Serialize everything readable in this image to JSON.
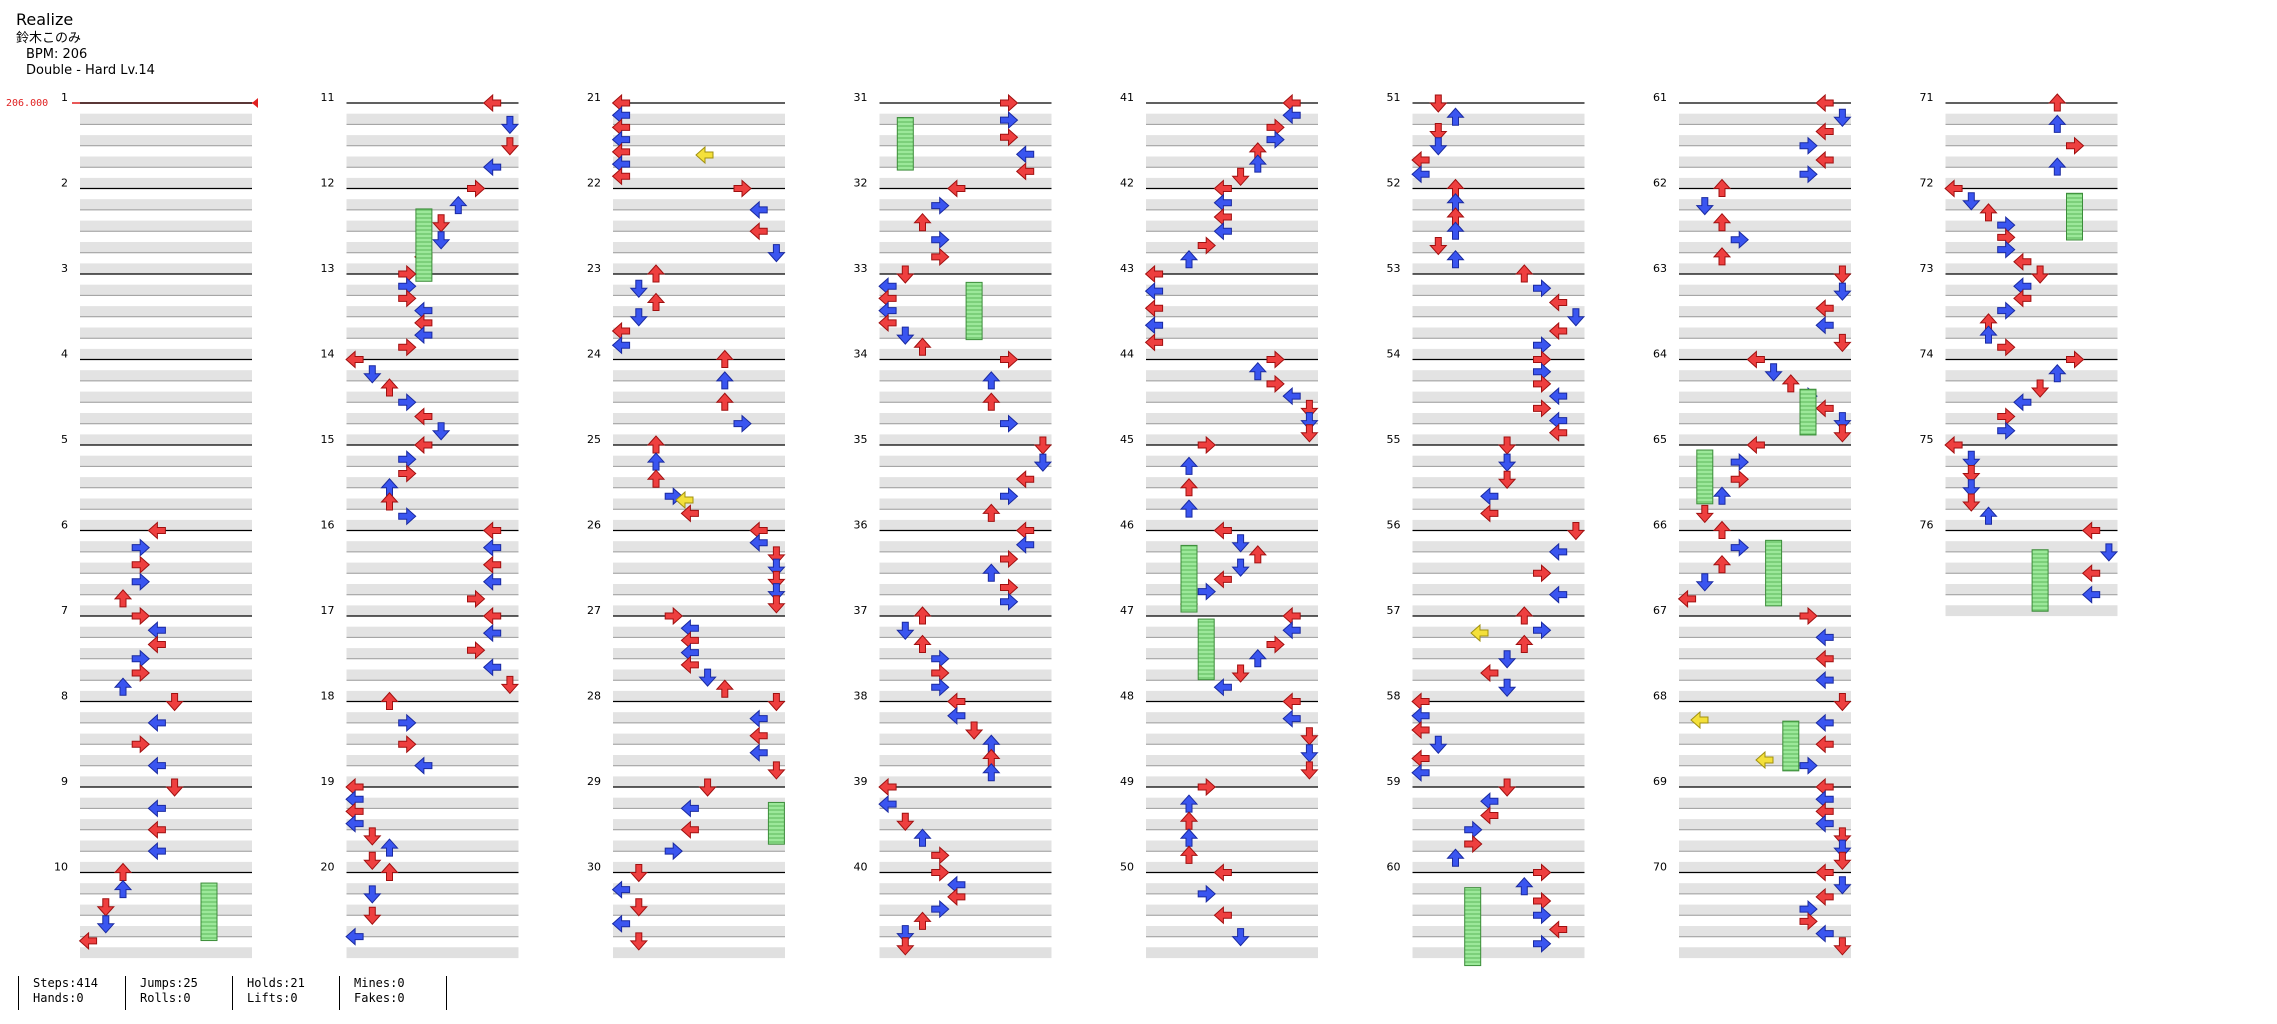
{
  "song": {
    "title": "Realize",
    "artist": "鈴木このみ",
    "bpm_label": "BPM: 206",
    "difficulty_label": "Double - Hard  Lv.14"
  },
  "bpm_marker": "206.000",
  "colors": {
    "red_arrow": "#ee3f3f",
    "blue_arrow": "#3a55f0",
    "hold_green": "#9ce89a",
    "mine_yellow": "#f4e03a",
    "row_shade": "#e0e0e0",
    "bpm_red": "#e02020"
  },
  "measure_numbers": [
    "1",
    "2",
    "3",
    "4",
    "5",
    "6",
    "7",
    "8",
    "9",
    "10",
    "11",
    "12",
    "13",
    "14",
    "15",
    "16",
    "17",
    "18",
    "19",
    "20",
    "21",
    "22",
    "23",
    "24",
    "25",
    "26",
    "27",
    "28",
    "29",
    "30",
    "31",
    "32",
    "33",
    "34",
    "35",
    "36",
    "37",
    "38",
    "39",
    "40",
    "41",
    "42",
    "43",
    "44",
    "45",
    "46",
    "47",
    "48",
    "49",
    "50",
    "51",
    "52",
    "53",
    "54",
    "55",
    "56",
    "57",
    "58",
    "59",
    "60",
    "61",
    "62",
    "63",
    "64",
    "65",
    "66",
    "67",
    "68",
    "69",
    "70",
    "71",
    "72",
    "73",
    "74",
    "75",
    "76"
  ],
  "stats": [
    {
      "top": "Steps:414",
      "bottom": "Hands:0"
    },
    {
      "top": "Jumps:25",
      "bottom": "Rolls:0"
    },
    {
      "top": "Holds:21",
      "bottom": "Lifts:0"
    },
    {
      "top": "Mines:0",
      "bottom": "Fakes:0"
    }
  ]
}
